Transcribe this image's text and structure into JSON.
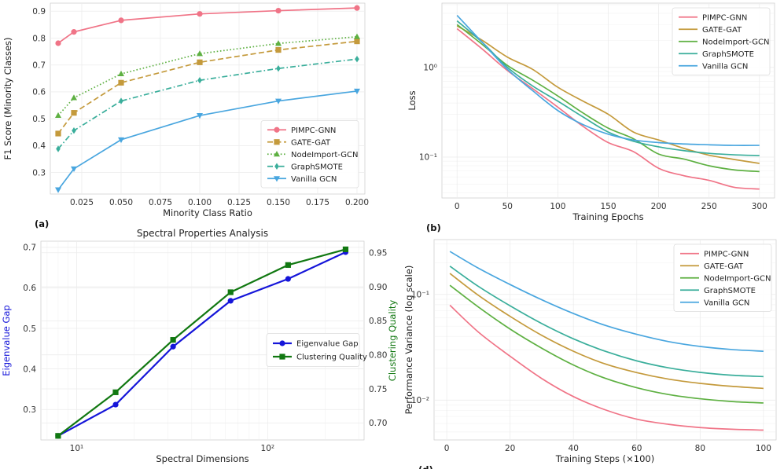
{
  "chart_data": [
    {
      "type": "line",
      "panel_label": "(a)",
      "title": "",
      "xlabel": "Minority Class Ratio",
      "ylabel": "F1 Score (Minority Classes)",
      "xlim": [
        0.005,
        0.205
      ],
      "ylim": [
        0.22,
        0.93
      ],
      "xticks": [
        0.025,
        0.05,
        0.075,
        0.1,
        0.125,
        0.15,
        0.175,
        0.2
      ],
      "xtick_labels": [
        "0.025",
        "0.050",
        "0.075",
        "0.100",
        "0.125",
        "0.150",
        "0.175",
        "0.200"
      ],
      "yticks": [
        0.3,
        0.4,
        0.5,
        0.6,
        0.7,
        0.8,
        0.9
      ],
      "ytick_labels": [
        "0.3",
        "0.4",
        "0.5",
        "0.6",
        "0.7",
        "0.8",
        "0.9"
      ],
      "legend_location": "lower-right",
      "x": [
        0.01,
        0.02,
        0.05,
        0.1,
        0.15,
        0.2
      ],
      "series": [
        {
          "name": "PIMPC-GNN",
          "color": "#f07487",
          "dash": "solid",
          "marker": "circle",
          "values": [
            0.781,
            0.823,
            0.866,
            0.89,
            0.902,
            0.912
          ]
        },
        {
          "name": "GATE-GAT",
          "color": "#c49a3c",
          "dash": "dashed",
          "marker": "square",
          "values": [
            0.445,
            0.522,
            0.634,
            0.71,
            0.756,
            0.788
          ]
        },
        {
          "name": "NodeImport-GCN",
          "color": "#5eb042",
          "dash": "dotted",
          "marker": "triangle-up",
          "values": [
            0.512,
            0.578,
            0.667,
            0.742,
            0.78,
            0.805
          ]
        },
        {
          "name": "GraphSMOTE",
          "color": "#3aae9b",
          "dash": "dashdot",
          "marker": "diamond",
          "values": [
            0.388,
            0.456,
            0.566,
            0.643,
            0.687,
            0.722
          ]
        },
        {
          "name": "Vanilla GCN",
          "color": "#49a6df",
          "dash": "solid",
          "marker": "triangle-down",
          "values": [
            0.236,
            0.314,
            0.422,
            0.512,
            0.566,
            0.603
          ]
        }
      ]
    },
    {
      "type": "line",
      "panel_label": "(b)",
      "title": "",
      "xlabel": "Training Epochs",
      "ylabel": "Loss",
      "yscale": "log",
      "xlim": [
        -15,
        315
      ],
      "ylim": [
        0.035,
        5.2
      ],
      "xticks": [
        0,
        50,
        100,
        150,
        200,
        250,
        300
      ],
      "xtick_labels": [
        "0",
        "50",
        "100",
        "150",
        "200",
        "250",
        "300"
      ],
      "yticks": [
        0.1,
        1
      ],
      "ytick_labels": [
        "10⁻¹",
        "10⁰"
      ],
      "legend_location": "upper-right",
      "x": [
        0,
        25,
        50,
        75,
        100,
        125,
        150,
        175,
        200,
        225,
        250,
        275,
        300
      ],
      "series": [
        {
          "name": "PIMPC-GNN",
          "color": "#f07487",
          "values": [
            2.7,
            1.6,
            0.92,
            0.58,
            0.36,
            0.22,
            0.145,
            0.115,
            0.075,
            0.062,
            0.055,
            0.046,
            0.044
          ]
        },
        {
          "name": "GATE-GAT",
          "color": "#c49a3c",
          "values": [
            2.9,
            2.0,
            1.3,
            0.95,
            0.6,
            0.42,
            0.3,
            0.19,
            0.155,
            0.125,
            0.105,
            0.094,
            0.085
          ]
        },
        {
          "name": "NodeImport-GCN",
          "color": "#5eb042",
          "values": [
            3.0,
            1.8,
            1.05,
            0.72,
            0.48,
            0.31,
            0.21,
            0.16,
            0.108,
            0.095,
            0.08,
            0.072,
            0.069
          ]
        },
        {
          "name": "GraphSMOTE",
          "color": "#3aae9b",
          "values": [
            3.3,
            1.9,
            1.0,
            0.62,
            0.42,
            0.28,
            0.19,
            0.15,
            0.13,
            0.118,
            0.11,
            0.106,
            0.104
          ]
        },
        {
          "name": "Vanilla GCN",
          "color": "#49a6df",
          "values": [
            3.8,
            1.9,
            0.95,
            0.55,
            0.33,
            0.23,
            0.18,
            0.155,
            0.145,
            0.14,
            0.137,
            0.135,
            0.135
          ]
        }
      ]
    },
    {
      "type": "line",
      "panel_label": "",
      "title": "Spectral Properties Analysis",
      "xlabel": "Spectral Dimensions",
      "ylabel": "Eigenvalue Gap",
      "ylabel_right": "Clustering Quality",
      "xscale": "log",
      "xlim": [
        6.5,
        320
      ],
      "ylim": [
        0.225,
        0.715
      ],
      "ylim_right": [
        0.675,
        0.967
      ],
      "xticks": [
        10,
        100
      ],
      "xtick_labels": [
        "10¹",
        "10²"
      ],
      "yticks": [
        0.3,
        0.4,
        0.5,
        0.6,
        0.7
      ],
      "ytick_labels": [
        "0.3",
        "0.4",
        "0.5",
        "0.6",
        "0.7"
      ],
      "yticks_right": [
        0.7,
        0.75,
        0.8,
        0.85,
        0.9,
        0.95
      ],
      "ytick_labels_right": [
        "0.70",
        "0.75",
        "0.80",
        "0.85",
        "0.90",
        "0.95"
      ],
      "legend_location": "center-right",
      "x": [
        8,
        16,
        32,
        64,
        128,
        256
      ],
      "series": [
        {
          "name": "Eigenvalue Gap",
          "color": "#1515d9",
          "axis": "left",
          "marker": "circle",
          "values": [
            0.235,
            0.312,
            0.455,
            0.568,
            0.622,
            0.688
          ]
        },
        {
          "name": "Clustering Quality",
          "color": "#117811",
          "axis": "right",
          "marker": "square",
          "values": [
            0.681,
            0.745,
            0.822,
            0.892,
            0.932,
            0.955
          ]
        }
      ]
    },
    {
      "type": "line",
      "panel_label": "(d)",
      "title": "",
      "xlabel": "Training Steps (×100)",
      "ylabel": "Performance Variance (log scale)",
      "yscale": "log",
      "xlim": [
        -4,
        104
      ],
      "ylim": [
        0.0042,
        0.33
      ],
      "xticks": [
        0,
        20,
        40,
        60,
        80,
        100
      ],
      "xtick_labels": [
        "0",
        "20",
        "40",
        "60",
        "80",
        "100"
      ],
      "yticks": [
        0.01,
        0.1
      ],
      "ytick_labels": [
        "10⁻²",
        "10⁻¹"
      ],
      "legend_location": "upper-right",
      "x": [
        1,
        10,
        20,
        30,
        40,
        50,
        60,
        70,
        80,
        90,
        100
      ],
      "series": [
        {
          "name": "PIMPC-GNN",
          "color": "#f07487",
          "values": [
            0.079,
            0.044,
            0.026,
            0.016,
            0.0108,
            0.0081,
            0.0066,
            0.0059,
            0.0055,
            0.0053,
            0.0052
          ]
        },
        {
          "name": "GATE-GAT",
          "color": "#c49a3c",
          "values": [
            0.158,
            0.098,
            0.062,
            0.041,
            0.029,
            0.022,
            0.0182,
            0.0158,
            0.0144,
            0.0135,
            0.0129
          ]
        },
        {
          "name": "NodeImport-GCN",
          "color": "#5eb042",
          "values": [
            0.122,
            0.076,
            0.047,
            0.031,
            0.0215,
            0.0161,
            0.0131,
            0.0113,
            0.0103,
            0.0097,
            0.0094
          ]
        },
        {
          "name": "GraphSMOTE",
          "color": "#3aae9b",
          "values": [
            0.185,
            0.119,
            0.078,
            0.053,
            0.038,
            0.029,
            0.0235,
            0.0202,
            0.0183,
            0.0172,
            0.0167
          ]
        },
        {
          "name": "Vanilla GCN",
          "color": "#49a6df",
          "values": [
            0.255,
            0.177,
            0.124,
            0.089,
            0.066,
            0.051,
            0.0419,
            0.0358,
            0.0322,
            0.0301,
            0.029
          ]
        }
      ]
    }
  ]
}
